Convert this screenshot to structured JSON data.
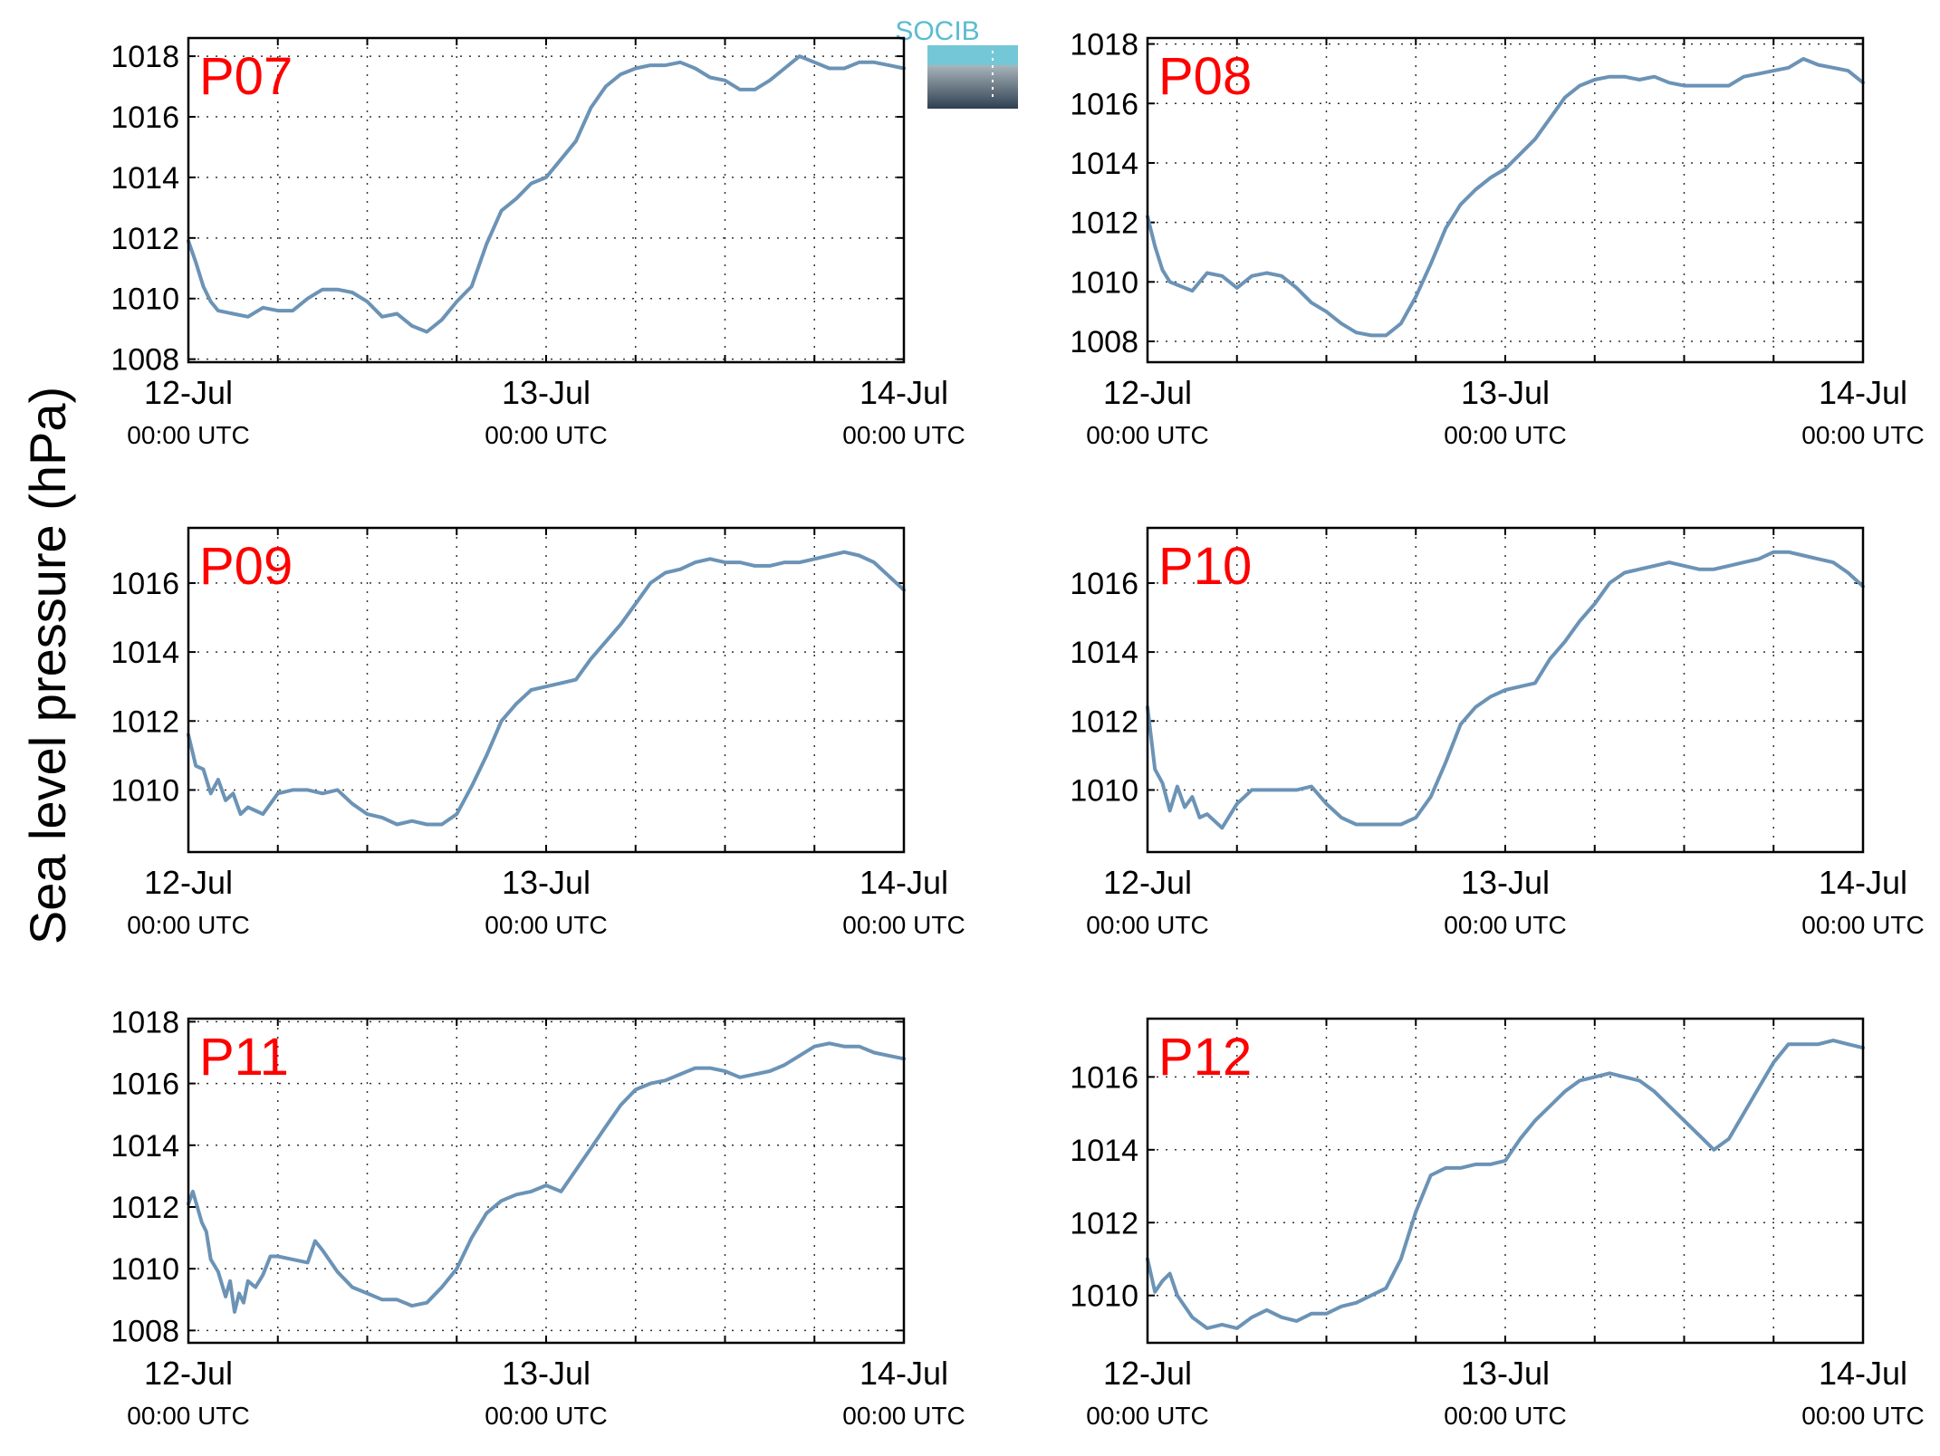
{
  "figure": {
    "ylabel": "Sea level pressure (hPa)",
    "logo_text": "SOCIB",
    "line_color": "#6b93b6",
    "station_label_color": "#ff0000"
  },
  "chart_data": [
    {
      "type": "line",
      "title": "P07",
      "x_ticks": [
        {
          "line1": "12-Jul",
          "line2": "00:00 UTC"
        },
        {
          "line1": "13-Jul",
          "line2": "00:00 UTC"
        },
        {
          "line1": "14-Jul",
          "line2": "00:00 UTC"
        }
      ],
      "xlim_hours": [
        0,
        48
      ],
      "ylim": [
        1007.9,
        1018.6
      ],
      "yticks": [
        1008,
        1010,
        1012,
        1014,
        1016,
        1018
      ],
      "grid": true,
      "series": [
        {
          "x_hours": [
            0,
            0.5,
            1,
            1.5,
            2,
            3,
            4,
            5,
            6,
            7,
            8,
            9,
            10,
            11,
            12,
            13,
            14,
            15,
            16,
            17,
            18,
            19,
            20,
            21,
            22,
            23,
            24,
            25,
            26,
            27,
            28,
            29,
            30,
            31,
            32,
            33,
            34,
            35,
            36,
            37,
            38,
            39,
            40,
            41,
            42,
            43,
            44,
            45,
            46,
            47,
            48
          ],
          "values": [
            1011.9,
            1011.2,
            1010.4,
            1009.9,
            1009.6,
            1009.5,
            1009.4,
            1009.7,
            1009.6,
            1009.6,
            1010.0,
            1010.3,
            1010.3,
            1010.2,
            1009.9,
            1009.4,
            1009.5,
            1009.1,
            1008.9,
            1009.3,
            1009.9,
            1010.4,
            1011.8,
            1012.9,
            1013.3,
            1013.8,
            1014.0,
            1014.6,
            1015.2,
            1016.3,
            1017.0,
            1017.4,
            1017.6,
            1017.7,
            1017.7,
            1017.8,
            1017.6,
            1017.3,
            1017.2,
            1016.9,
            1016.9,
            1017.2,
            1017.6,
            1018.0,
            1017.8,
            1017.6,
            1017.6,
            1017.8,
            1017.8,
            1017.7,
            1017.6
          ]
        }
      ]
    },
    {
      "type": "line",
      "title": "P08",
      "x_ticks": [
        {
          "line1": "12-Jul",
          "line2": "00:00 UTC"
        },
        {
          "line1": "13-Jul",
          "line2": "00:00 UTC"
        },
        {
          "line1": "14-Jul",
          "line2": "00:00 UTC"
        }
      ],
      "xlim_hours": [
        0,
        48
      ],
      "ylim": [
        1007.3,
        1018.2
      ],
      "yticks": [
        1008,
        1010,
        1012,
        1014,
        1016,
        1018
      ],
      "grid": true,
      "series": [
        {
          "x_hours": [
            0,
            0.5,
            1,
            1.5,
            2,
            3,
            4,
            5,
            6,
            7,
            8,
            9,
            10,
            11,
            12,
            13,
            14,
            15,
            16,
            17,
            18,
            19,
            20,
            21,
            22,
            23,
            24,
            25,
            26,
            27,
            28,
            29,
            30,
            31,
            32,
            33,
            34,
            35,
            36,
            37,
            38,
            39,
            40,
            41,
            42,
            43,
            44,
            45,
            46,
            47,
            48
          ],
          "values": [
            1012.2,
            1011.2,
            1010.4,
            1010.0,
            1009.9,
            1009.7,
            1010.3,
            1010.2,
            1009.8,
            1010.2,
            1010.3,
            1010.2,
            1009.8,
            1009.3,
            1009.0,
            1008.6,
            1008.3,
            1008.2,
            1008.2,
            1008.6,
            1009.5,
            1010.6,
            1011.8,
            1012.6,
            1013.1,
            1013.5,
            1013.8,
            1014.3,
            1014.8,
            1015.5,
            1016.2,
            1016.6,
            1016.8,
            1016.9,
            1016.9,
            1016.8,
            1016.9,
            1016.7,
            1016.6,
            1016.6,
            1016.6,
            1016.6,
            1016.9,
            1017.0,
            1017.1,
            1017.2,
            1017.5,
            1017.3,
            1017.2,
            1017.1,
            1016.7
          ]
        }
      ]
    },
    {
      "type": "line",
      "title": "P09",
      "x_ticks": [
        {
          "line1": "12-Jul",
          "line2": "00:00 UTC"
        },
        {
          "line1": "13-Jul",
          "line2": "00:00 UTC"
        },
        {
          "line1": "14-Jul",
          "line2": "00:00 UTC"
        }
      ],
      "xlim_hours": [
        0,
        48
      ],
      "ylim": [
        1008.2,
        1017.6
      ],
      "yticks": [
        1010,
        1012,
        1014,
        1016
      ],
      "grid": true,
      "series": [
        {
          "x_hours": [
            0,
            0.5,
            1,
            1.5,
            2,
            2.5,
            3,
            3.5,
            4,
            5,
            6,
            7,
            8,
            9,
            10,
            11,
            12,
            13,
            14,
            15,
            16,
            17,
            18,
            19,
            20,
            21,
            22,
            23,
            24,
            25,
            26,
            27,
            28,
            29,
            30,
            31,
            32,
            33,
            34,
            35,
            36,
            37,
            38,
            39,
            40,
            41,
            42,
            43,
            44,
            45,
            46,
            47,
            48
          ],
          "values": [
            1011.6,
            1010.7,
            1010.6,
            1009.9,
            1010.3,
            1009.7,
            1009.9,
            1009.3,
            1009.5,
            1009.3,
            1009.9,
            1010.0,
            1010.0,
            1009.9,
            1010.0,
            1009.6,
            1009.3,
            1009.2,
            1009.0,
            1009.1,
            1009.0,
            1009.0,
            1009.3,
            1010.1,
            1011.0,
            1012.0,
            1012.5,
            1012.9,
            1013.0,
            1013.1,
            1013.2,
            1013.8,
            1014.3,
            1014.8,
            1015.4,
            1016.0,
            1016.3,
            1016.4,
            1016.6,
            1016.7,
            1016.6,
            1016.6,
            1016.5,
            1016.5,
            1016.6,
            1016.6,
            1016.7,
            1016.8,
            1016.9,
            1016.8,
            1016.6,
            1016.2,
            1015.8
          ]
        }
      ]
    },
    {
      "type": "line",
      "title": "P10",
      "x_ticks": [
        {
          "line1": "12-Jul",
          "line2": "00:00 UTC"
        },
        {
          "line1": "13-Jul",
          "line2": "00:00 UTC"
        },
        {
          "line1": "14-Jul",
          "line2": "00:00 UTC"
        }
      ],
      "xlim_hours": [
        0,
        48
      ],
      "ylim": [
        1008.2,
        1017.6
      ],
      "yticks": [
        1010,
        1012,
        1014,
        1016
      ],
      "grid": true,
      "series": [
        {
          "x_hours": [
            0,
            0.5,
            1,
            1.5,
            2,
            2.5,
            3,
            3.5,
            4,
            5,
            6,
            7,
            8,
            9,
            10,
            11,
            12,
            13,
            14,
            15,
            16,
            17,
            18,
            19,
            20,
            21,
            22,
            23,
            24,
            25,
            26,
            27,
            28,
            29,
            30,
            31,
            32,
            33,
            34,
            35,
            36,
            37,
            38,
            39,
            40,
            41,
            42,
            43,
            44,
            45,
            46,
            47,
            48
          ],
          "values": [
            1012.4,
            1010.6,
            1010.2,
            1009.4,
            1010.1,
            1009.5,
            1009.8,
            1009.2,
            1009.3,
            1008.9,
            1009.6,
            1010.0,
            1010.0,
            1010.0,
            1010.0,
            1010.1,
            1009.6,
            1009.2,
            1009.0,
            1009.0,
            1009.0,
            1009.0,
            1009.2,
            1009.8,
            1010.8,
            1011.9,
            1012.4,
            1012.7,
            1012.9,
            1013.0,
            1013.1,
            1013.8,
            1014.3,
            1014.9,
            1015.4,
            1016.0,
            1016.3,
            1016.4,
            1016.5,
            1016.6,
            1016.5,
            1016.4,
            1016.4,
            1016.5,
            1016.6,
            1016.7,
            1016.9,
            1016.9,
            1016.8,
            1016.7,
            1016.6,
            1016.3,
            1015.9
          ]
        }
      ]
    },
    {
      "type": "line",
      "title": "P11",
      "x_ticks": [
        {
          "line1": "12-Jul",
          "line2": "00:00 UTC"
        },
        {
          "line1": "13-Jul",
          "line2": "00:00 UTC"
        },
        {
          "line1": "14-Jul",
          "line2": "00:00 UTC"
        }
      ],
      "xlim_hours": [
        0,
        48
      ],
      "ylim": [
        1007.6,
        1018.1
      ],
      "yticks": [
        1008,
        1010,
        1012,
        1014,
        1016,
        1018
      ],
      "grid": true,
      "series": [
        {
          "x_hours": [
            0,
            0.3,
            0.6,
            0.9,
            1.2,
            1.5,
            2,
            2.5,
            2.8,
            3.1,
            3.4,
            3.7,
            4,
            4.5,
            5,
            5.5,
            6,
            7,
            8,
            8.5,
            9,
            10,
            11,
            12,
            13,
            14,
            15,
            16,
            17,
            18,
            19,
            20,
            21,
            22,
            23,
            24,
            25,
            26,
            27,
            28,
            29,
            30,
            31,
            32,
            33,
            34,
            35,
            36,
            37,
            38,
            39,
            40,
            41,
            42,
            43,
            44,
            45,
            46,
            47,
            48
          ],
          "values": [
            1012.1,
            1012.5,
            1012.0,
            1011.5,
            1011.2,
            1010.3,
            1009.9,
            1009.1,
            1009.6,
            1008.6,
            1009.2,
            1008.9,
            1009.6,
            1009.4,
            1009.8,
            1010.4,
            1010.4,
            1010.3,
            1010.2,
            1010.9,
            1010.6,
            1009.9,
            1009.4,
            1009.2,
            1009.0,
            1009.0,
            1008.8,
            1008.9,
            1009.4,
            1010.0,
            1011.0,
            1011.8,
            1012.2,
            1012.4,
            1012.5,
            1012.7,
            1012.5,
            1013.2,
            1013.9,
            1014.6,
            1015.3,
            1015.8,
            1016.0,
            1016.1,
            1016.3,
            1016.5,
            1016.5,
            1016.4,
            1016.2,
            1016.3,
            1016.4,
            1016.6,
            1016.9,
            1017.2,
            1017.3,
            1017.2,
            1017.2,
            1017.0,
            1016.9,
            1016.8
          ]
        }
      ]
    },
    {
      "type": "line",
      "title": "P12",
      "x_ticks": [
        {
          "line1": "12-Jul",
          "line2": "00:00 UTC"
        },
        {
          "line1": "13-Jul",
          "line2": "00:00 UTC"
        },
        {
          "line1": "14-Jul",
          "line2": "00:00 UTC"
        }
      ],
      "xlim_hours": [
        0,
        48
      ],
      "ylim": [
        1008.7,
        1017.6
      ],
      "yticks": [
        1010,
        1012,
        1014,
        1016
      ],
      "grid": true,
      "series": [
        {
          "x_hours": [
            0,
            0.5,
            1,
            1.5,
            2,
            3,
            4,
            5,
            6,
            7,
            8,
            9,
            10,
            11,
            12,
            13,
            14,
            15,
            16,
            17,
            18,
            19,
            20,
            21,
            22,
            23,
            24,
            25,
            26,
            27,
            28,
            29,
            30,
            31,
            32,
            33,
            34,
            35,
            36,
            37,
            38,
            39,
            40,
            41,
            42,
            43,
            44,
            45,
            46,
            47,
            48
          ],
          "values": [
            1011.0,
            1010.1,
            1010.4,
            1010.6,
            1010.0,
            1009.4,
            1009.1,
            1009.2,
            1009.1,
            1009.4,
            1009.6,
            1009.4,
            1009.3,
            1009.5,
            1009.5,
            1009.7,
            1009.8,
            1010.0,
            1010.2,
            1011.0,
            1012.3,
            1013.3,
            1013.5,
            1013.5,
            1013.6,
            1013.6,
            1013.7,
            1014.3,
            1014.8,
            1015.2,
            1015.6,
            1015.9,
            1016.0,
            1016.1,
            1016.0,
            1015.9,
            1015.6,
            1015.2,
            1014.8,
            1014.4,
            1014.0,
            1014.3,
            1015.0,
            1015.7,
            1016.4,
            1016.9,
            1016.9,
            1016.9,
            1017.0,
            1016.9,
            1016.8
          ]
        }
      ]
    }
  ]
}
